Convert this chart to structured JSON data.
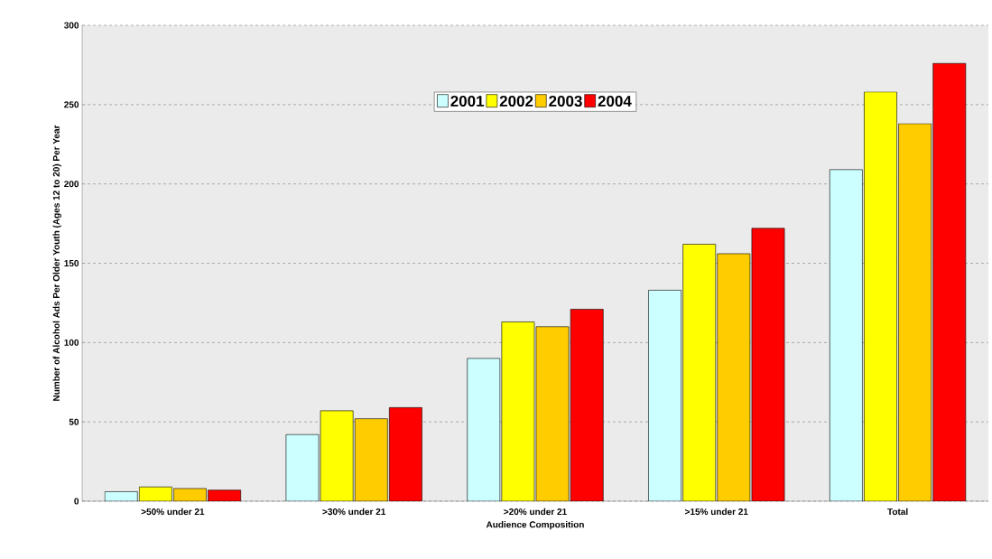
{
  "chart_data": {
    "type": "bar",
    "xlabel": "Audience Composition",
    "ylabel": "Number of Alcohol Ads Per Older Youth (Ages 12 to 20) Per Year",
    "categories": [
      ">50% under 21",
      ">30% under 21",
      ">20% under 21",
      ">15% under 21",
      "Total"
    ],
    "series": [
      {
        "name": "2001",
        "color": "#ccffff",
        "values": [
          6,
          42,
          90,
          133,
          209
        ]
      },
      {
        "name": "2002",
        "color": "#ffff00",
        "values": [
          9,
          57,
          113,
          162,
          258
        ]
      },
      {
        "name": "2003",
        "color": "#ffcc00",
        "values": [
          8,
          52,
          110,
          156,
          238
        ]
      },
      {
        "name": "2004",
        "color": "#ff0000",
        "values": [
          7,
          59,
          121,
          172,
          276
        ]
      }
    ],
    "ylim": [
      0,
      300
    ],
    "yticks": [
      0,
      50,
      100,
      150,
      200,
      250,
      300
    ],
    "grid": "y",
    "legend": "top"
  }
}
